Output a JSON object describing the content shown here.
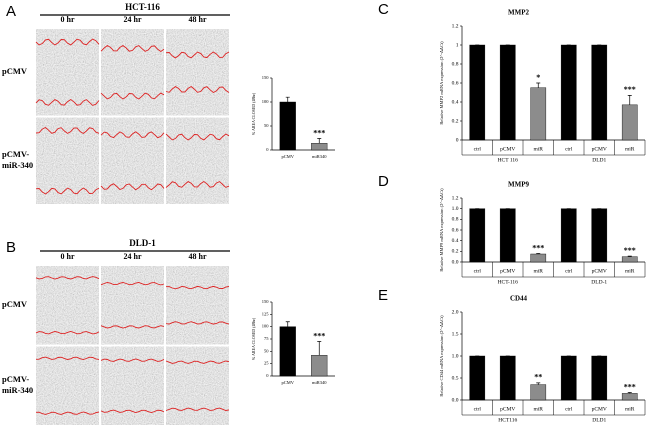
{
  "image_panels": [
    {
      "letter": "A",
      "cell_line": "HCT-116",
      "timepoints": [
        "0 hr",
        "24 hr",
        "48 hr"
      ],
      "conditions": [
        [
          "pCMV"
        ],
        [
          "pCMV-",
          "miR-340"
        ]
      ]
    },
    {
      "letter": "B",
      "cell_line": "DLD-1",
      "timepoints": [
        "0 hr",
        "24 hr",
        "48 hr"
      ],
      "conditions": [
        [
          "pCMV"
        ],
        [
          "pCMV-",
          "miR-340"
        ]
      ]
    }
  ],
  "chart_data": [
    {
      "type": "bar",
      "ylabel": "% AREA CLOSED (48hr)",
      "categories": [
        "pCMV",
        "miR340"
      ],
      "values": [
        100,
        14
      ],
      "errors": [
        10,
        10
      ],
      "colors": [
        "#000000",
        "#8c8c8c"
      ],
      "significance": [
        null,
        "***"
      ],
      "ylim": [
        0,
        150
      ],
      "yticks": [
        0,
        50,
        100,
        150
      ]
    },
    {
      "type": "bar",
      "ylabel": "% AREA CLOSED (48hr)",
      "categories": [
        "pCMV",
        "miR340"
      ],
      "values": [
        100,
        42
      ],
      "errors": [
        10,
        28
      ],
      "colors": [
        "#000000",
        "#8c8c8c"
      ],
      "significance": [
        null,
        "***"
      ],
      "ylim": [
        0,
        150
      ],
      "yticks": [
        0,
        25,
        50,
        75,
        100,
        125,
        150
      ]
    },
    {
      "type": "bar",
      "panel": "C",
      "title": "MMP2",
      "ylabel": "Relative MMP2 mRNA expression (2^-ΔΔCt)",
      "categories": [
        "ctrl",
        "pCMV",
        "miR",
        "ctrl",
        "pCMV",
        "miR"
      ],
      "groups": [
        "HCT 116",
        "DLD1"
      ],
      "values": [
        1,
        1,
        0.55,
        1,
        1,
        0.37
      ],
      "errors": [
        0,
        0,
        0.05,
        0,
        0,
        0.1
      ],
      "colors": [
        "#000000",
        "#000000",
        "#8c8c8c",
        "#000000",
        "#000000",
        "#8c8c8c"
      ],
      "significance": [
        null,
        null,
        "*",
        null,
        null,
        "***"
      ],
      "ylim": [
        0,
        1.2
      ],
      "yticks": [
        0,
        0.2,
        0.4,
        0.6,
        0.8,
        1,
        1.2
      ]
    },
    {
      "type": "bar",
      "panel": "D",
      "title": "MMP9",
      "ylabel": "Relative MMP9 mRNA expression (2^-ΔΔCt)",
      "categories": [
        "ctrl",
        "pCMV",
        "miR",
        "ctrl",
        "pCMV",
        "miR"
      ],
      "groups": [
        "HCT-116",
        "DLD-1"
      ],
      "values": [
        1,
        1,
        0.15,
        1,
        1,
        0.1
      ],
      "errors": [
        0,
        0,
        0.01,
        0,
        0,
        0.01
      ],
      "colors": [
        "#000000",
        "#000000",
        "#8c8c8c",
        "#000000",
        "#000000",
        "#8c8c8c"
      ],
      "significance": [
        null,
        null,
        "***",
        null,
        null,
        "***"
      ],
      "ylim": [
        0,
        1.2
      ],
      "yticks": [
        {
          "value": 0,
          "label": "0.0"
        },
        0.2,
        0.4,
        0.6,
        0.8,
        {
          "value": 1,
          "label": "1.0"
        },
        1.2
      ]
    },
    {
      "type": "bar",
      "panel": "E",
      "title": "CD44",
      "ylabel": "Relative CD44 mRNA expression (2^-ΔΔCt)",
      "categories": [
        "ctrl",
        "pCMV",
        "miR",
        "ctrl",
        "pCMV",
        "miR"
      ],
      "groups": [
        "HCT116",
        "DLD1"
      ],
      "values": [
        1,
        1,
        0.35,
        1,
        1,
        0.15
      ],
      "errors": [
        0,
        0,
        0.04,
        0,
        0,
        0.02
      ],
      "colors": [
        "#000000",
        "#000000",
        "#8c8c8c",
        "#000000",
        "#000000",
        "#8c8c8c"
      ],
      "significance": [
        null,
        null,
        "**",
        null,
        null,
        "***"
      ],
      "ylim": [
        0,
        2
      ],
      "yticks": [
        {
          "value": 0,
          "label": "0.0"
        },
        0.5,
        {
          "value": 1,
          "label": "1.0"
        },
        1.5,
        {
          "value": 2,
          "label": "2.0"
        }
      ]
    }
  ]
}
